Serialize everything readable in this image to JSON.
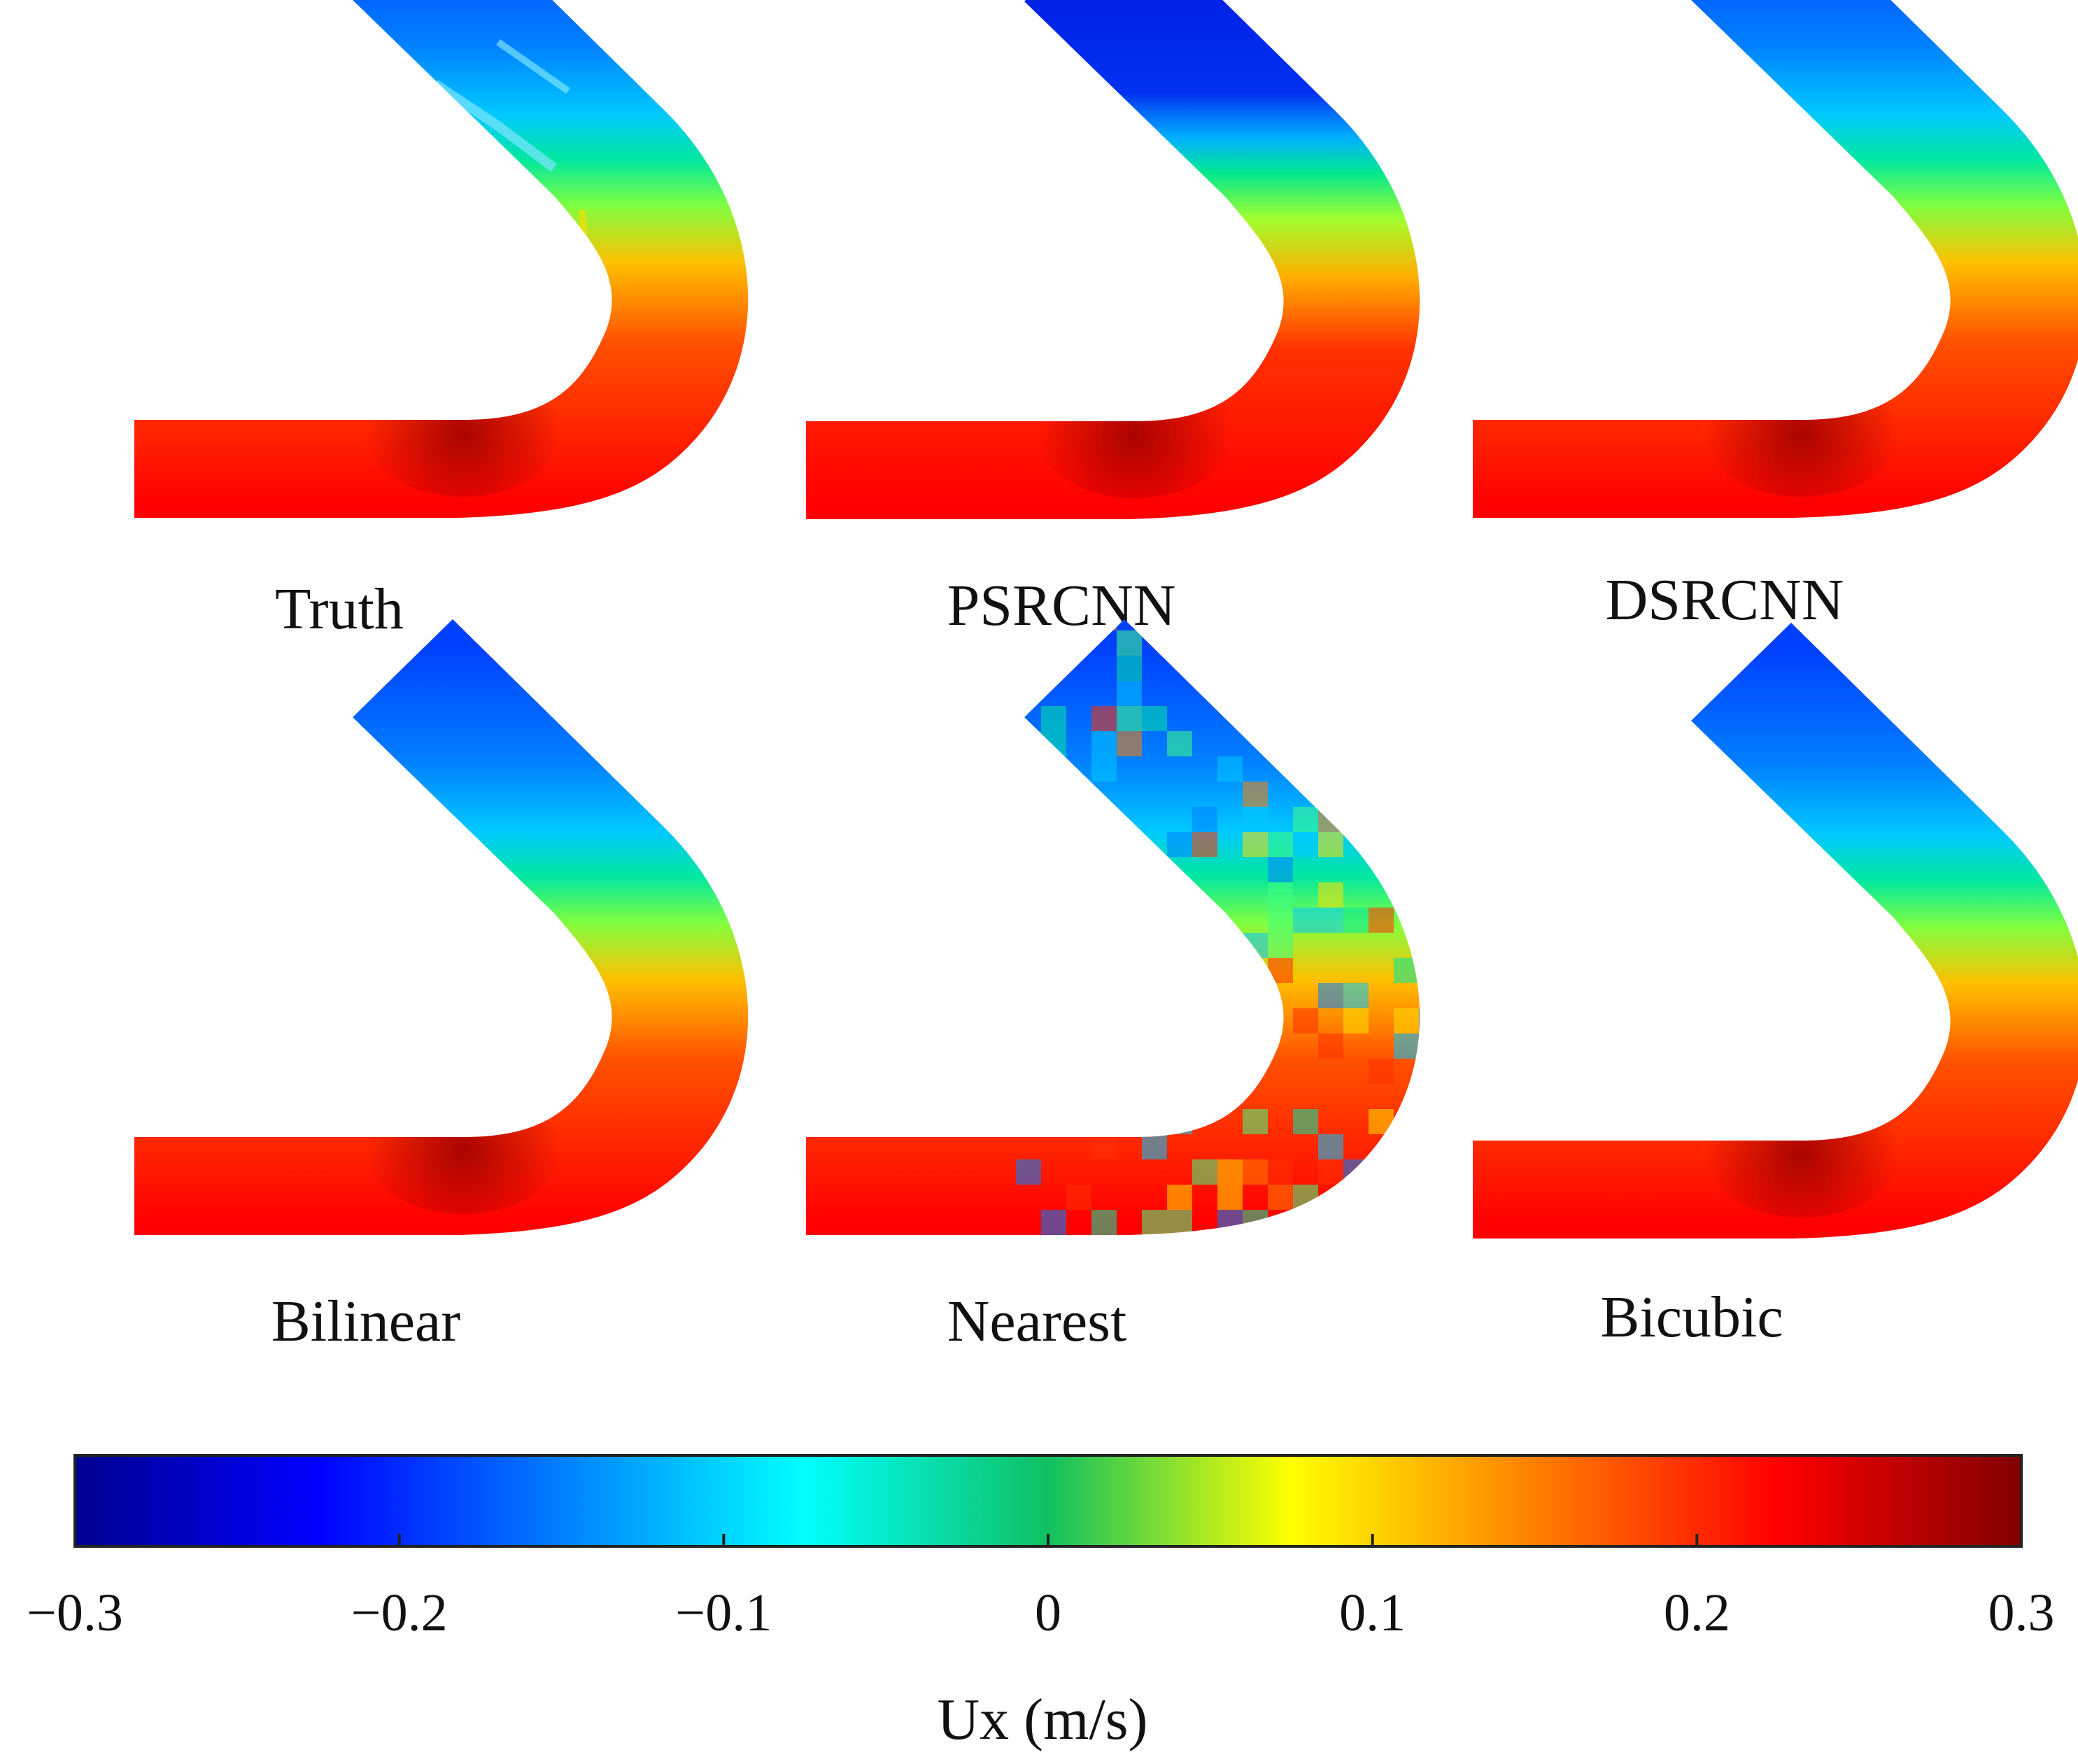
{
  "panels": [
    {
      "id": "truth",
      "label": "Truth"
    },
    {
      "id": "psrcnn",
      "label": "PSRCNN"
    },
    {
      "id": "dsrcnn",
      "label": "DSRCNN"
    },
    {
      "id": "bilinear",
      "label": "Bilinear"
    },
    {
      "id": "nearest",
      "label": "Nearest"
    },
    {
      "id": "bicubic",
      "label": "Bicubic"
    }
  ],
  "colorbar": {
    "label": "Ux (m/s)",
    "min": -0.3,
    "max": 0.3,
    "ticks": [
      "−0.3",
      "−0.2",
      "−0.1",
      "0",
      "0.1",
      "0.2",
      "0.3"
    ],
    "colormap": "jet"
  },
  "colors": {
    "dark_blue": "#00008f",
    "blue": "#0000ff",
    "mid_blue": "#0060ff",
    "cyan": "#00ffff",
    "green": "#10c060",
    "yellow": "#ffff00",
    "orange": "#ff8000",
    "red": "#ff0000",
    "dark_red": "#800000"
  }
}
